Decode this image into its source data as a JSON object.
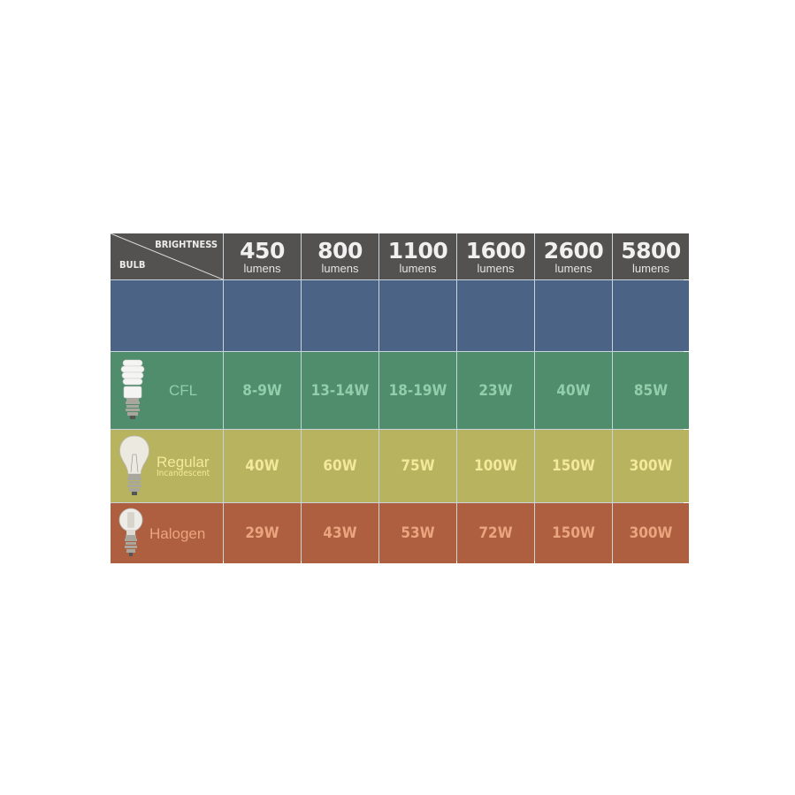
{
  "header": {
    "corner_top": "BRIGHTNESS",
    "corner_bottom": "BULB",
    "columns": [
      {
        "value": "450",
        "unit": "lumens"
      },
      {
        "value": "800",
        "unit": "lumens"
      },
      {
        "value": "1100",
        "unit": "lumens"
      },
      {
        "value": "1600",
        "unit": "lumens"
      },
      {
        "value": "2600",
        "unit": "lumens"
      },
      {
        "value": "5800",
        "unit": "lumens"
      }
    ]
  },
  "rows": [
    {
      "name": "CFL",
      "sub": "",
      "icon": "cfl-bulb-icon",
      "values": [
        "8-9W",
        "13-14W",
        "18-19W",
        "23W",
        "40W",
        "85W"
      ]
    },
    {
      "name": "Regular",
      "sub": "Incandescent",
      "icon": "incandescent-bulb-icon",
      "values": [
        "40W",
        "60W",
        "75W",
        "100W",
        "150W",
        "300W"
      ]
    },
    {
      "name": "Halogen",
      "sub": "",
      "icon": "halogen-bulb-icon",
      "values": [
        "29W",
        "43W",
        "53W",
        "72W",
        "150W",
        "300W"
      ]
    }
  ],
  "colors": {
    "header": "#545250",
    "blank_row": "#4b6385",
    "cfl": "#4f8d6d",
    "regular": "#b8b35e",
    "halogen": "#ae5f3f"
  }
}
